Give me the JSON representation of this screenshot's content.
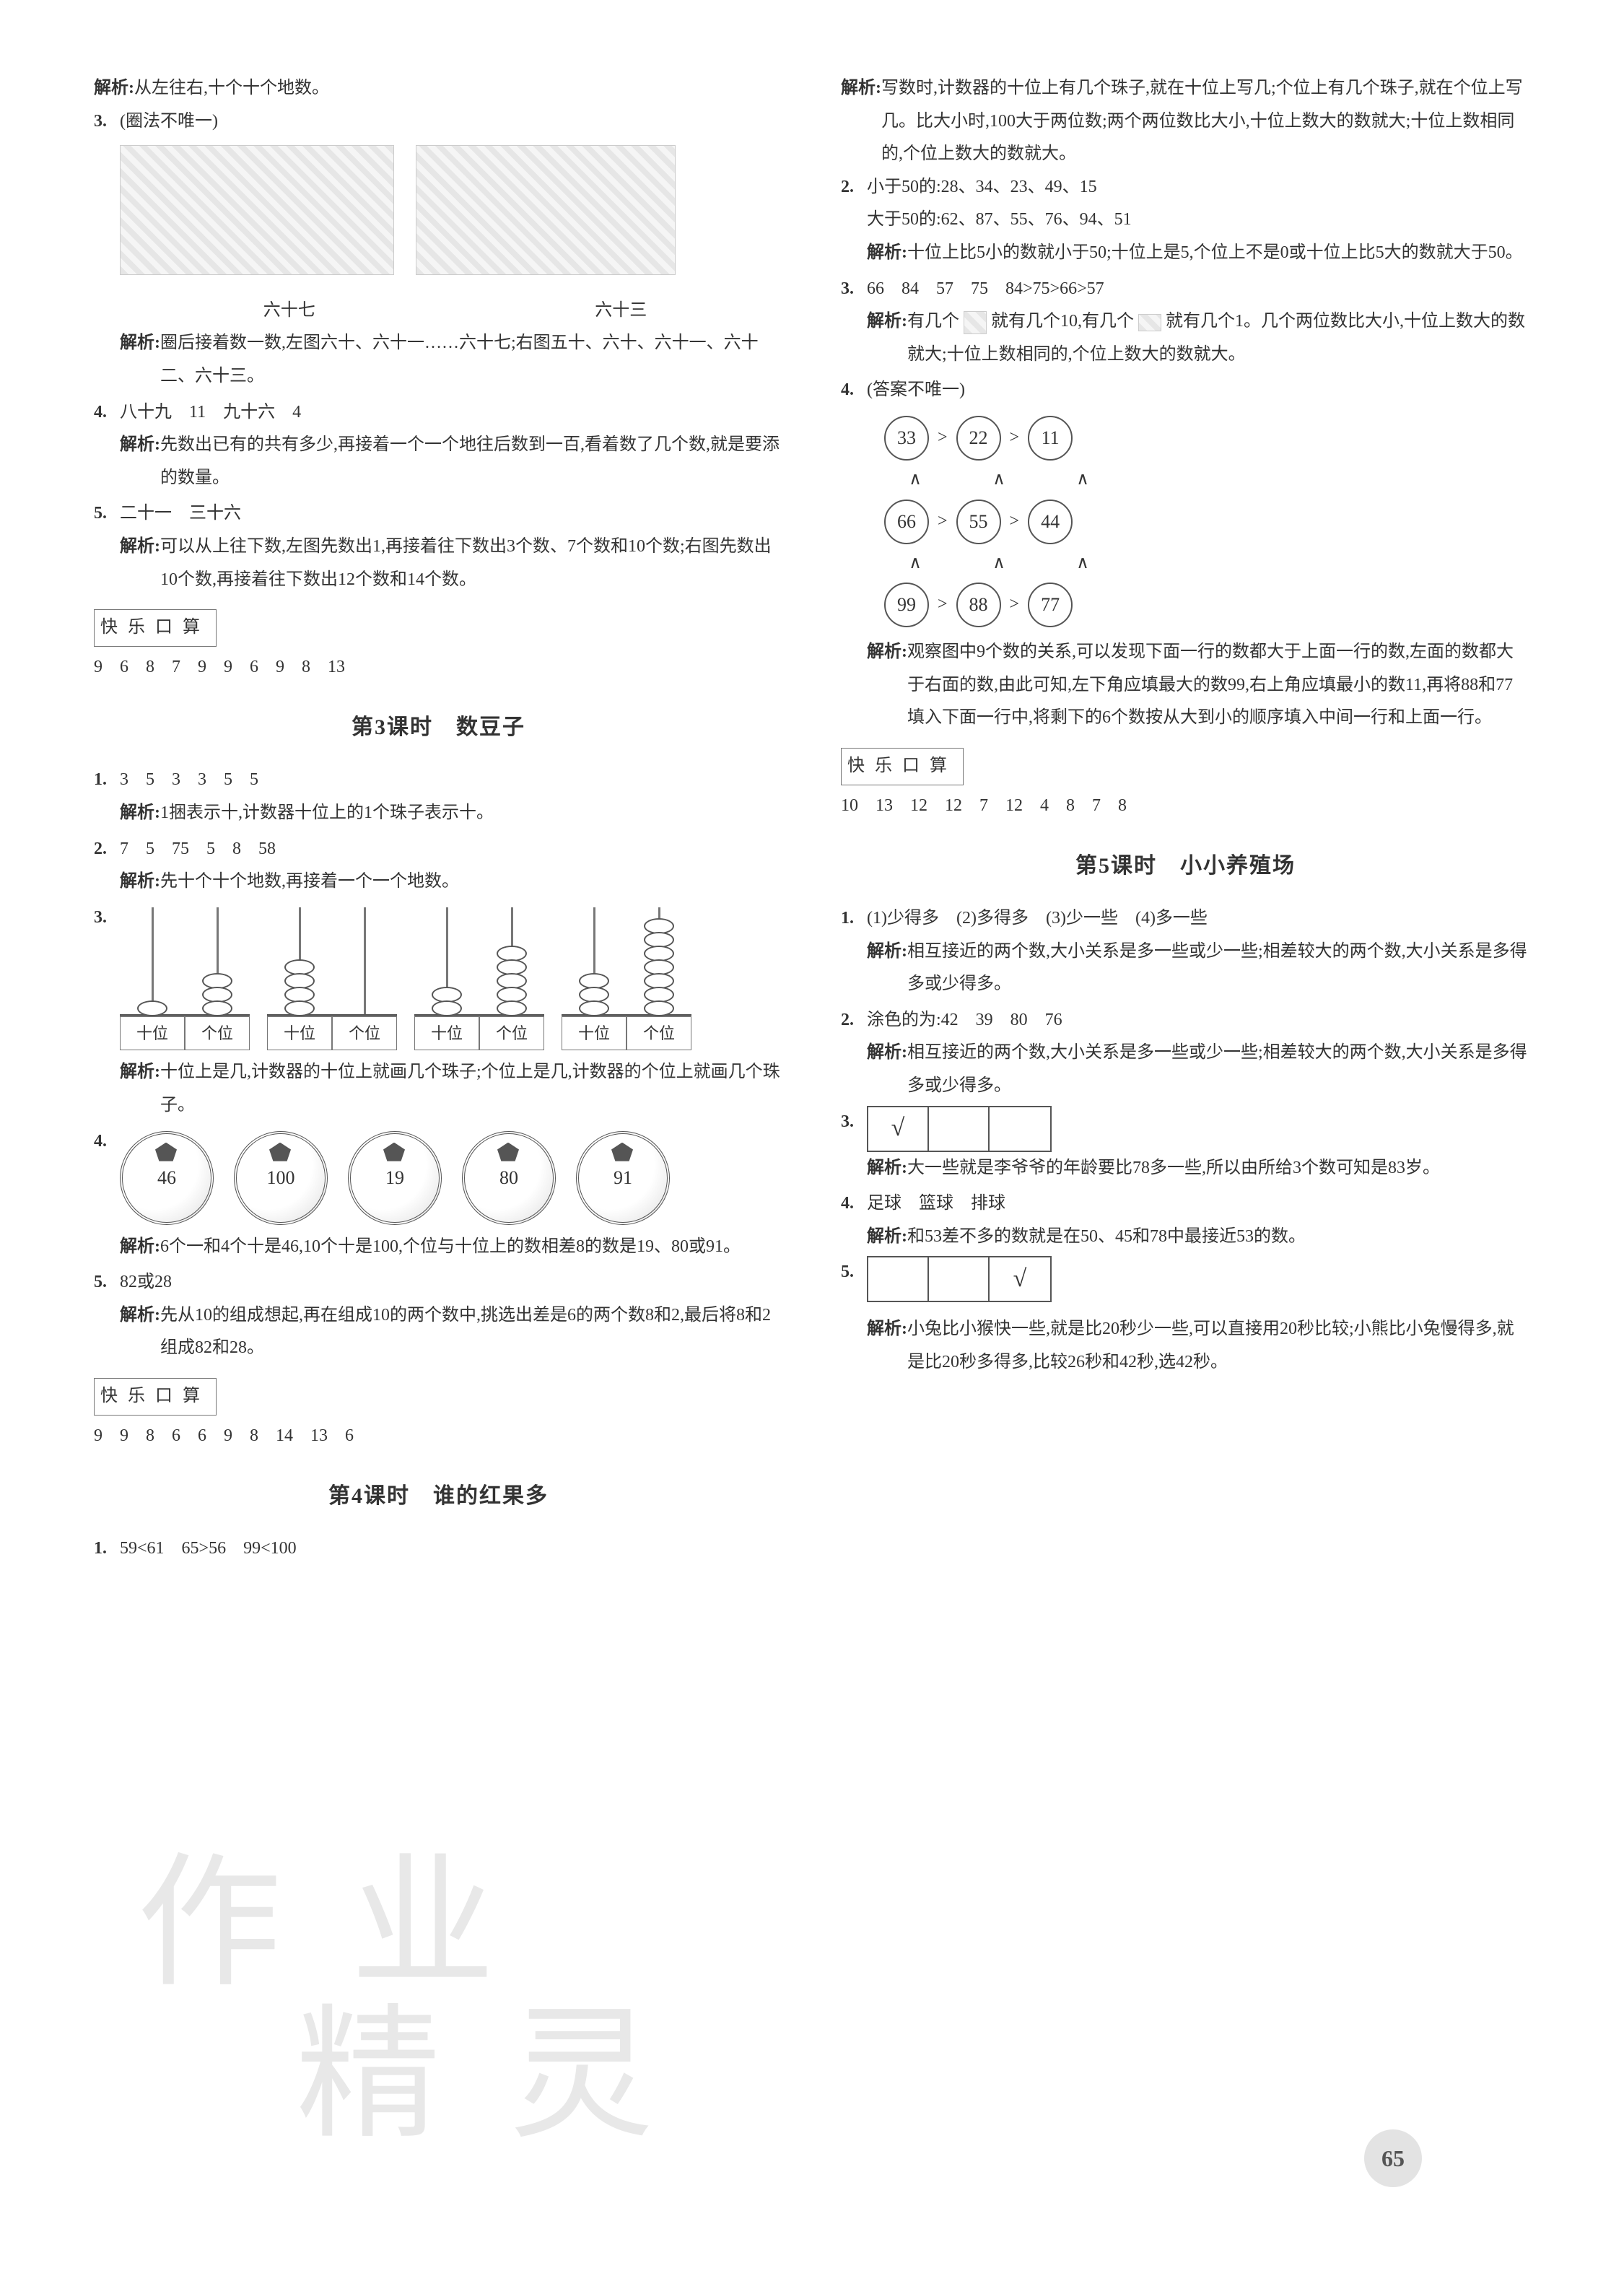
{
  "left": {
    "pre": {
      "analysis1": "从左往右,十个十个地数。",
      "q3_label": "3.",
      "q3_text": "(圈法不唯一)",
      "q3_img1_label": "六十七",
      "q3_img2_label": "六十三",
      "q3_analysis": "圈后接着数一数,左图六十、六十一……六十七;右图五十、六十、六十一、六十二、六十三。",
      "q4_label": "4.",
      "q4_text": "八十九　11　九十六　4",
      "q4_analysis": "先数出已有的共有多少,再接着一个一个地往后数到一百,看着数了几个数,就是要添的数量。",
      "q5_label": "5.",
      "q5_text": "二十一　三十六",
      "q5_analysis": "可以从上往下数,左图先数出1,再接着往下数出3个数、7个数和10个数;右图先数出10个数,再接着往下数出12个数和14个数。"
    },
    "kuaile1": {
      "title": "快乐口算",
      "nums": "9　6　8　7　9　9　6　9　8　13"
    },
    "lesson3": {
      "title": "第3课时　数豆子",
      "q1_label": "1.",
      "q1_text": "3　5　3　3　5　5",
      "q1_analysis": "1捆表示十,计数器十位上的1个珠子表示十。",
      "q2_label": "2.",
      "q2_text": "7　5　75　5　8　58",
      "q2_analysis": "先十个十个地数,再接着一个一个地数。",
      "q3_label": "3.",
      "abacus": [
        {
          "tens": 1,
          "ones": 3,
          "labels": [
            "十位",
            "个位"
          ]
        },
        {
          "tens": 4,
          "ones": 0,
          "labels": [
            "十位",
            "个位"
          ]
        },
        {
          "tens": 2,
          "ones": 5,
          "labels": [
            "十位",
            "个位"
          ]
        },
        {
          "tens": 3,
          "ones": 7,
          "labels": [
            "十位",
            "个位"
          ]
        }
      ],
      "q3_analysis": "十位上是几,计数器的十位上就画几个珠子;个位上是几,计数器的个位上就画几个珠子。",
      "q4_label": "4.",
      "balls": [
        "46",
        "100",
        "19",
        "80",
        "91"
      ],
      "q4_analysis": "6个一和4个十是46,10个十是100,个位与十位上的数相差8的数是19、80或91。",
      "q5_label": "5.",
      "q5_text": "82或28",
      "q5_analysis": "先从10的组成想起,再在组成10的两个数中,挑选出差是6的两个数8和2,最后将8和2组成82和28。"
    },
    "kuaile2": {
      "title": "快乐口算",
      "nums": "9　9　8　6　6　9　8　14　13　6"
    },
    "lesson4": {
      "title": "第4课时　谁的红果多",
      "q1_label": "1.",
      "q1_text": "59<61　65>56　99<100"
    }
  },
  "right": {
    "l4cont": {
      "analysis1": "写数时,计数器的十位上有几个珠子,就在十位上写几;个位上有几个珠子,就在个位上写几。比大小时,100大于两位数;两个两位数比大小,十位上数大的数就大;十位上数相同的,个位上数大的数就大。",
      "q2_label": "2.",
      "q2_line1": "小于50的:28、34、23、49、15",
      "q2_line2": "大于50的:62、87、55、76、94、51",
      "q2_analysis": "十位上比5小的数就小于50;十位上是5,个位上不是0或十位上比5大的数就大于50。",
      "q3_label": "3.",
      "q3_text": "66　84　57　75　84>75>66>57",
      "q3_analysis_pre": "有几个",
      "q3_analysis_mid1": "就有几个10,有几个",
      "q3_analysis_mid2": "就有几个1。几个两位数比大小,十位上数大的数就大;十位上数相同的,个位上数大的数就大。",
      "q4_label": "4.",
      "q4_text": "(答案不唯一)",
      "tree": {
        "row1": [
          "33",
          "22",
          "11"
        ],
        "row2": [
          "66",
          "55",
          "44"
        ],
        "row3": [
          "99",
          "88",
          "77"
        ]
      },
      "q4_analysis": "观察图中9个数的关系,可以发现下面一行的数都大于上面一行的数,左面的数都大于右面的数,由此可知,左下角应填最大的数99,右上角应填最小的数11,再将88和77填入下面一行中,将剩下的6个数按从大到小的顺序填入中间一行和上面一行。"
    },
    "kuaile3": {
      "title": "快乐口算",
      "nums": "10　13　12　12　7　12　4　8　7　8"
    },
    "lesson5": {
      "title": "第5课时　小小养殖场",
      "q1_label": "1.",
      "q1_text": "(1)少得多　(2)多得多　(3)少一些　(4)多一些",
      "q1_analysis": "相互接近的两个数,大小关系是多一些或少一些;相差较大的两个数,大小关系是多得多或少得多。",
      "q2_label": "2.",
      "q2_text": "涂色的为:42　39　80　76",
      "q2_analysis": "相互接近的两个数,大小关系是多一些或少一些;相差较大的两个数,大小关系是多得多或少得多。",
      "q3_label": "3.",
      "q3_checks": [
        "√",
        "",
        ""
      ],
      "q3_analysis": "大一些就是李爷爷的年龄要比78多一些,所以由所给3个数可知是83岁。",
      "q4_label": "4.",
      "q4_text": "足球　篮球　排球",
      "q4_analysis": "和53差不多的数就是在50、45和78中最接近53的数。",
      "q5_label": "5.",
      "q5_checks": [
        "",
        "",
        "√"
      ],
      "q5_analysis": "小兔比小猴快一些,就是比20秒少一些,可以直接用20秒比较;小熊比小兔慢得多,就是比20秒多得多,比较26秒和42秒,选42秒。"
    }
  },
  "labels": {
    "analysis": "解析:",
    "gt": ">",
    "caret": "∧"
  },
  "page_number": "65",
  "watermark_l1": "作 业",
  "watermark_l2": "　精 灵"
}
